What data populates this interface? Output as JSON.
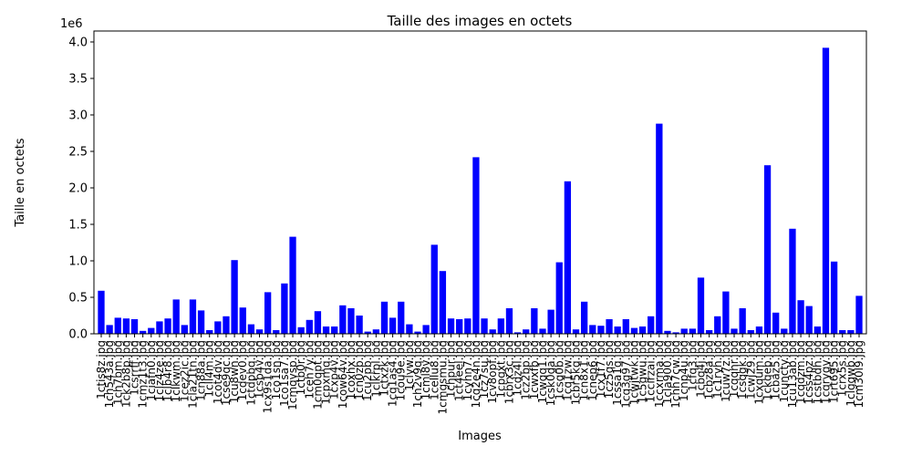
{
  "chart_data": {
    "type": "bar",
    "title": "Taille des images en octets",
    "xlabel": "Images",
    "ylabel": "Taille en octets",
    "y_offset_label": "1e6",
    "color": "#0000ff",
    "categories": [
      "1ctis8z.jpg",
      "1ch543a.jpg",
      "1ch7bm.jpg",
      "1ck2b8p.jpg",
      "1csrrff.jpg",
      "1cmz1t3.jpg",
      "1ciafn0.jpg",
      "1clz4ze.jpg",
      "1clb4r8.jpg",
      "1clkwm.jpg",
      "1cez2ic.jpg",
      "1cla21tn.jpg",
      "1cn88a.jpg",
      "1cll4m.jpg",
      "1cot4dv.jpg",
      "1cse9qc.jpg",
      "1cu8wn.jpg",
      "1cdev0.jpg",
      "1ctdpbq.jpg",
      "1csb4v.jpg",
      "1cx9s1da.jpg",
      "1co1sn.jpg",
      "1co1sa7.jpg",
      "1cmqvsp.jpg",
      "1ctb0r.jpg",
      "1ceh7y.jpg",
      "1cm0qpt.jpg",
      "1cpxmq.jpg",
      "1cxp4v.jpg",
      "1cow64v.jpg",
      "1coxhx.jpg",
      "1cn0zb.jpg",
      "1cu2pb.jpg",
      "1clkrpl.jpg",
      "1ctxzk.jpg",
      "1cq1as4.jpg",
      "1cou9e.jpg",
      "1clyw.jpg",
      "1ch2v9q.jpg",
      "1cml8v.jpg",
      "1cellu8.jpg",
      "1cmgsmu.jpg",
      "1chpur.jpg",
      "1ct4eel.jpg",
      "1cyhn7.jpg",
      "1cq2e4n.jpg",
      "1cz7su.jpg",
      "1cv8opf.jpg",
      "1cpgxt.jpg",
      "1cbrx3c.jpg",
      "1cdz4l.jpg",
      "1cz2bp.jpg",
      "1cwxfb.jpg",
      "1cwqq1.jpg",
      "1csk0ga.jpg",
      "1csq0b.jpg",
      "1cq1zw.jpg",
      "1cbr5kq.jpg",
      "1cn8x1.jpg",
      "1cnep6.jpg",
      "1cx1f7.jpg",
      "1cz5qs.jpg",
      "1cssa1q.jpg",
      "1cq3g97.jpg",
      "1cwjtwk.jpg",
      "1c5gwu.jpg",
      "1ccirzai.jpg",
      "1ccxrma.jpg",
      "1cla900.jpg",
      "1chh7cw.jpg",
      "1cnp4u.jpg",
      "1cfq3.jpg",
      "1cbq4j.jpg",
      "1cbz8a.jpg",
      "1c1ryh.jpg",
      "1cuw7z.jpg",
      "1cqqhr.jpg",
      "1csqgk.jpg",
      "1cwj29.jpg",
      "1cxqum.jpg",
      "1ckqeb.jpg",
      "1cbaz5.jpg",
      "1cuncty.jpg",
      "1cu13ab.jpg",
      "1cqdzm.jpg",
      "1css4pz.jpg",
      "1cstbdh.jpg",
      "1cqrygv.jpg",
      "1crt695.jpg",
      "1crx5s.jpg",
      "1clgqwb.jpg",
      "1cm30l9.jpg"
    ],
    "values": [
      0.59,
      0.12,
      0.22,
      0.21,
      0.2,
      0.04,
      0.08,
      0.17,
      0.21,
      0.47,
      0.12,
      0.47,
      0.32,
      0.05,
      0.17,
      0.24,
      1.01,
      0.36,
      0.13,
      0.06,
      0.57,
      0.05,
      0.69,
      1.33,
      0.09,
      0.19,
      0.31,
      0.1,
      0.1,
      0.39,
      0.35,
      0.25,
      0.03,
      0.06,
      0.44,
      0.22,
      0.44,
      0.13,
      0.03,
      0.12,
      1.22,
      0.86,
      0.21,
      0.2,
      0.21,
      2.42,
      0.21,
      0.06,
      0.21,
      0.35,
      0.02,
      0.06,
      0.35,
      0.07,
      0.33,
      0.98,
      2.09,
      0.06,
      0.44,
      0.12,
      0.11,
      0.2,
      0.1,
      0.2,
      0.08,
      0.1,
      0.24,
      2.88,
      0.04,
      0.02,
      0.07,
      0.07,
      0.77,
      0.05,
      0.24,
      0.58,
      0.07,
      0.35,
      0.05,
      0.1,
      2.31,
      0.29,
      0.07,
      1.44,
      0.46,
      0.38,
      0.1,
      3.92,
      0.99,
      0.05,
      0.05,
      0.52
    ],
    "ylim": [
      0,
      4.15
    ],
    "yticks": [
      {
        "value": 0,
        "label": "0.0"
      },
      0.5,
      {
        "value": 1,
        "label": "1.0"
      },
      1.5,
      {
        "value": 2,
        "label": "2.0"
      },
      2.5,
      {
        "value": 3,
        "label": "3.0"
      },
      3.5,
      {
        "value": 4,
        "label": "4.0"
      }
    ]
  }
}
